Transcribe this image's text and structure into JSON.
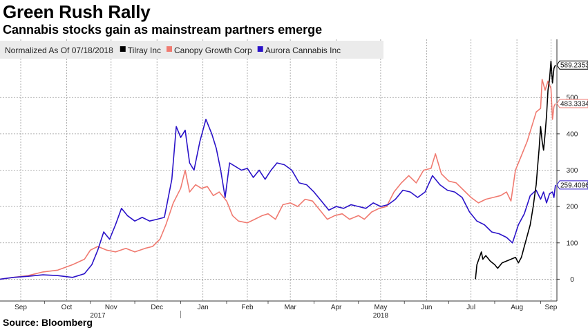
{
  "title": "Green Rush Rally",
  "subtitle": "Cannabis stocks gain as mainstream partners emerge",
  "source": "Source: Bloomberg",
  "legend_prefix": "Normalized As Of 07/18/2018",
  "colors": {
    "tilray": "#000000",
    "canopy": "#f07a70",
    "aurora": "#2a12c8",
    "grid": "#9a9a9a"
  },
  "chart_data": {
    "type": "line",
    "xlabel": "",
    "ylabel": "",
    "ylim": [
      -60,
      660
    ],
    "y_ticks": [
      0,
      100,
      200,
      300,
      400,
      500
    ],
    "x_range": [
      "2017-09-01",
      "2018-09-12"
    ],
    "x_ticks": [
      {
        "label": "Sep",
        "date": "2017-09-15"
      },
      {
        "label": "Oct",
        "date": "2017-10-16"
      },
      {
        "label": "Nov",
        "date": "2017-11-15"
      },
      {
        "label": "Dec",
        "date": "2017-12-16"
      },
      {
        "label": "Jan",
        "date": "2018-01-16"
      },
      {
        "label": "Feb",
        "date": "2018-02-15"
      },
      {
        "label": "Mar",
        "date": "2018-03-16"
      },
      {
        "label": "Apr",
        "date": "2018-04-16"
      },
      {
        "label": "May",
        "date": "2018-05-16"
      },
      {
        "label": "Jun",
        "date": "2018-06-16"
      },
      {
        "label": "Jul",
        "date": "2018-07-16"
      },
      {
        "label": "Aug",
        "date": "2018-08-16"
      },
      {
        "label": "Sep",
        "date": "2018-09-08"
      }
    ],
    "year_labels": [
      {
        "label": "2017",
        "date": "2017-11-06"
      },
      {
        "label": "2018",
        "date": "2018-05-16"
      }
    ],
    "series": [
      {
        "name": "Tilray Inc",
        "color_key": "tilray",
        "end_label": "589.2353",
        "points": [
          [
            "2018-07-19",
            0
          ],
          [
            "2018-07-20",
            40
          ],
          [
            "2018-07-23",
            75
          ],
          [
            "2018-07-24",
            55
          ],
          [
            "2018-07-26",
            65
          ],
          [
            "2018-07-29",
            50
          ],
          [
            "2018-08-01",
            40
          ],
          [
            "2018-08-03",
            30
          ],
          [
            "2018-08-06",
            45
          ],
          [
            "2018-08-09",
            50
          ],
          [
            "2018-08-12",
            55
          ],
          [
            "2018-08-15",
            60
          ],
          [
            "2018-08-17",
            45
          ],
          [
            "2018-08-19",
            60
          ],
          [
            "2018-08-21",
            90
          ],
          [
            "2018-08-23",
            120
          ],
          [
            "2018-08-25",
            150
          ],
          [
            "2018-08-27",
            200
          ],
          [
            "2018-08-28",
            230
          ],
          [
            "2018-08-29",
            260
          ],
          [
            "2018-08-30",
            310
          ],
          [
            "2018-08-31",
            360
          ],
          [
            "2018-09-01",
            420
          ],
          [
            "2018-09-02",
            380
          ],
          [
            "2018-09-03",
            355
          ],
          [
            "2018-09-04",
            400
          ],
          [
            "2018-09-05",
            450
          ],
          [
            "2018-09-06",
            520
          ],
          [
            "2018-09-07",
            550
          ],
          [
            "2018-09-08",
            600
          ],
          [
            "2018-09-09",
            540
          ],
          [
            "2018-09-10",
            580
          ],
          [
            "2018-09-11",
            589.2353
          ]
        ]
      },
      {
        "name": "Canopy Growth Corp",
        "color_key": "canopy",
        "end_label": "483.3334",
        "points": [
          [
            "2017-09-01",
            0
          ],
          [
            "2017-09-10",
            5
          ],
          [
            "2017-09-20",
            10
          ],
          [
            "2017-09-30",
            20
          ],
          [
            "2017-10-10",
            25
          ],
          [
            "2017-10-20",
            40
          ],
          [
            "2017-10-28",
            55
          ],
          [
            "2017-11-01",
            80
          ],
          [
            "2017-11-06",
            90
          ],
          [
            "2017-11-12",
            80
          ],
          [
            "2017-11-18",
            75
          ],
          [
            "2017-11-25",
            85
          ],
          [
            "2017-12-01",
            75
          ],
          [
            "2017-12-08",
            85
          ],
          [
            "2017-12-13",
            90
          ],
          [
            "2017-12-18",
            110
          ],
          [
            "2017-12-22",
            150
          ],
          [
            "2017-12-27",
            210
          ],
          [
            "2018-01-01",
            250
          ],
          [
            "2018-01-04",
            300
          ],
          [
            "2018-01-07",
            240
          ],
          [
            "2018-01-11",
            260
          ],
          [
            "2018-01-15",
            250
          ],
          [
            "2018-01-19",
            255
          ],
          [
            "2018-01-23",
            230
          ],
          [
            "2018-01-27",
            240
          ],
          [
            "2018-02-01",
            215
          ],
          [
            "2018-02-05",
            175
          ],
          [
            "2018-02-09",
            160
          ],
          [
            "2018-02-15",
            155
          ],
          [
            "2018-02-20",
            165
          ],
          [
            "2018-02-25",
            175
          ],
          [
            "2018-03-01",
            180
          ],
          [
            "2018-03-06",
            165
          ],
          [
            "2018-03-11",
            205
          ],
          [
            "2018-03-16",
            210
          ],
          [
            "2018-03-21",
            200
          ],
          [
            "2018-03-26",
            220
          ],
          [
            "2018-03-31",
            215
          ],
          [
            "2018-04-05",
            190
          ],
          [
            "2018-04-10",
            165
          ],
          [
            "2018-04-15",
            175
          ],
          [
            "2018-04-20",
            180
          ],
          [
            "2018-04-25",
            165
          ],
          [
            "2018-05-01",
            175
          ],
          [
            "2018-05-05",
            165
          ],
          [
            "2018-05-10",
            185
          ],
          [
            "2018-05-15",
            195
          ],
          [
            "2018-05-20",
            200
          ],
          [
            "2018-05-25",
            240
          ],
          [
            "2018-05-30",
            265
          ],
          [
            "2018-06-04",
            285
          ],
          [
            "2018-06-09",
            265
          ],
          [
            "2018-06-14",
            300
          ],
          [
            "2018-06-19",
            305
          ],
          [
            "2018-06-22",
            345
          ],
          [
            "2018-06-26",
            290
          ],
          [
            "2018-07-01",
            270
          ],
          [
            "2018-07-06",
            265
          ],
          [
            "2018-07-11",
            245
          ],
          [
            "2018-07-16",
            225
          ],
          [
            "2018-07-21",
            210
          ],
          [
            "2018-07-26",
            220
          ],
          [
            "2018-07-31",
            225
          ],
          [
            "2018-08-05",
            230
          ],
          [
            "2018-08-09",
            240
          ],
          [
            "2018-08-12",
            215
          ],
          [
            "2018-08-15",
            300
          ],
          [
            "2018-08-19",
            340
          ],
          [
            "2018-08-23",
            380
          ],
          [
            "2018-08-26",
            420
          ],
          [
            "2018-08-29",
            460
          ],
          [
            "2018-09-01",
            470
          ],
          [
            "2018-09-02",
            550
          ],
          [
            "2018-09-04",
            520
          ],
          [
            "2018-09-06",
            545
          ],
          [
            "2018-09-08",
            525
          ],
          [
            "2018-09-09",
            440
          ],
          [
            "2018-09-10",
            475
          ],
          [
            "2018-09-11",
            483.3334
          ]
        ]
      },
      {
        "name": "Aurora Cannabis Inc",
        "color_key": "aurora",
        "end_label": "259.4096",
        "points": [
          [
            "2017-09-01",
            0
          ],
          [
            "2017-09-10",
            5
          ],
          [
            "2017-09-20",
            8
          ],
          [
            "2017-09-30",
            12
          ],
          [
            "2017-10-10",
            10
          ],
          [
            "2017-10-20",
            5
          ],
          [
            "2017-10-28",
            15
          ],
          [
            "2017-11-02",
            40
          ],
          [
            "2017-11-06",
            80
          ],
          [
            "2017-11-10",
            130
          ],
          [
            "2017-11-14",
            110
          ],
          [
            "2017-11-18",
            150
          ],
          [
            "2017-11-22",
            195
          ],
          [
            "2017-11-26",
            175
          ],
          [
            "2017-12-01",
            160
          ],
          [
            "2017-12-06",
            170
          ],
          [
            "2017-12-11",
            160
          ],
          [
            "2017-12-16",
            165
          ],
          [
            "2017-12-21",
            170
          ],
          [
            "2017-12-26",
            275
          ],
          [
            "2017-12-29",
            420
          ],
          [
            "2018-01-01",
            390
          ],
          [
            "2018-01-04",
            410
          ],
          [
            "2018-01-07",
            320
          ],
          [
            "2018-01-10",
            300
          ],
          [
            "2018-01-14",
            380
          ],
          [
            "2018-01-18",
            440
          ],
          [
            "2018-01-22",
            400
          ],
          [
            "2018-01-25",
            360
          ],
          [
            "2018-01-28",
            300
          ],
          [
            "2018-01-31",
            225
          ],
          [
            "2018-02-03",
            320
          ],
          [
            "2018-02-07",
            310
          ],
          [
            "2018-02-11",
            300
          ],
          [
            "2018-02-15",
            305
          ],
          [
            "2018-02-19",
            280
          ],
          [
            "2018-02-23",
            300
          ],
          [
            "2018-02-27",
            275
          ],
          [
            "2018-03-03",
            300
          ],
          [
            "2018-03-07",
            320
          ],
          [
            "2018-03-12",
            315
          ],
          [
            "2018-03-17",
            300
          ],
          [
            "2018-03-22",
            265
          ],
          [
            "2018-03-27",
            260
          ],
          [
            "2018-04-01",
            240
          ],
          [
            "2018-04-06",
            215
          ],
          [
            "2018-04-11",
            190
          ],
          [
            "2018-04-16",
            200
          ],
          [
            "2018-04-21",
            195
          ],
          [
            "2018-04-26",
            205
          ],
          [
            "2018-05-01",
            200
          ],
          [
            "2018-05-06",
            195
          ],
          [
            "2018-05-11",
            210
          ],
          [
            "2018-05-16",
            200
          ],
          [
            "2018-05-21",
            205
          ],
          [
            "2018-05-26",
            220
          ],
          [
            "2018-05-31",
            245
          ],
          [
            "2018-06-05",
            240
          ],
          [
            "2018-06-10",
            225
          ],
          [
            "2018-06-15",
            240
          ],
          [
            "2018-06-20",
            285
          ],
          [
            "2018-06-25",
            260
          ],
          [
            "2018-06-30",
            245
          ],
          [
            "2018-07-05",
            240
          ],
          [
            "2018-07-10",
            225
          ],
          [
            "2018-07-15",
            185
          ],
          [
            "2018-07-20",
            160
          ],
          [
            "2018-07-25",
            150
          ],
          [
            "2018-07-30",
            130
          ],
          [
            "2018-08-04",
            125
          ],
          [
            "2018-08-09",
            115
          ],
          [
            "2018-08-13",
            100
          ],
          [
            "2018-08-17",
            150
          ],
          [
            "2018-08-21",
            180
          ],
          [
            "2018-08-25",
            230
          ],
          [
            "2018-08-29",
            245
          ],
          [
            "2018-09-01",
            220
          ],
          [
            "2018-09-03",
            240
          ],
          [
            "2018-09-05",
            210
          ],
          [
            "2018-09-07",
            235
          ],
          [
            "2018-09-09",
            240
          ],
          [
            "2018-09-10",
            225
          ],
          [
            "2018-09-11",
            259.4096
          ]
        ]
      }
    ]
  }
}
